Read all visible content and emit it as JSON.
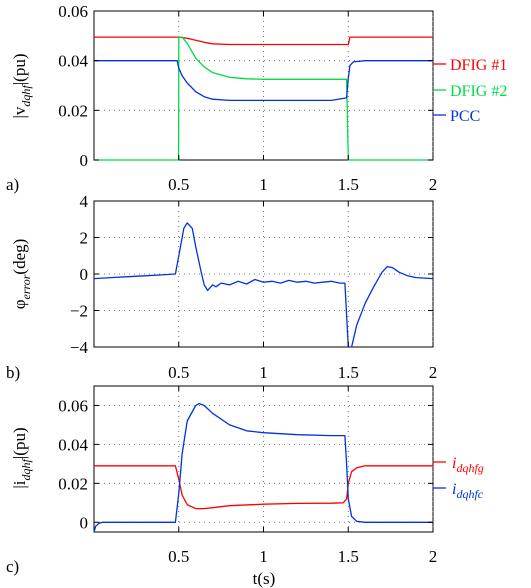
{
  "figure": {
    "xlabel": "t(s)"
  },
  "chart_data": [
    {
      "type": "line",
      "panel_label": "a)",
      "ylabel": {
        "pre": "|v",
        "sub": "dqhf",
        "post": "|(pu)"
      },
      "xlim": [
        0,
        2
      ],
      "ylim": [
        0,
        0.06
      ],
      "xticks": [
        0.5,
        1,
        1.5,
        2
      ],
      "xtick_labels": [
        "0.5",
        "1",
        "1.5",
        "2"
      ],
      "yticks": [
        0,
        0.02,
        0.04,
        0.06
      ],
      "ytick_labels": [
        "0",
        "0.02",
        "0.04",
        "0.06"
      ],
      "grid": true,
      "legend_position": "right",
      "series": [
        {
          "name": "DFIG #1",
          "color": "#ff0000",
          "x": [
            0,
            0.5,
            0.55,
            0.6,
            0.65,
            0.7,
            0.8,
            1.0,
            1.2,
            1.4,
            1.5,
            1.51,
            1.6,
            1.8,
            2.0
          ],
          "y": [
            0.0495,
            0.0495,
            0.049,
            0.0482,
            0.0474,
            0.0468,
            0.0465,
            0.0465,
            0.0465,
            0.0465,
            0.0465,
            0.0495,
            0.0495,
            0.0495,
            0.0495
          ]
        },
        {
          "name": "DFIG #2",
          "color": "#00dd44",
          "x": [
            0,
            0.499,
            0.5,
            0.52,
            0.55,
            0.6,
            0.65,
            0.7,
            0.8,
            0.9,
            1.0,
            1.2,
            1.4,
            1.49,
            1.5,
            2.0
          ],
          "y": [
            0,
            0,
            0.0495,
            0.0495,
            0.047,
            0.041,
            0.0375,
            0.0352,
            0.0333,
            0.0327,
            0.0325,
            0.0325,
            0.0325,
            0.0325,
            0,
            0
          ]
        },
        {
          "name": "PCC",
          "color": "#0033dd",
          "x": [
            0,
            0.49,
            0.5,
            0.52,
            0.55,
            0.6,
            0.65,
            0.7,
            0.8,
            0.9,
            1.0,
            1.2,
            1.4,
            1.49,
            1.5,
            1.51,
            1.53,
            1.6,
            1.8,
            2.0
          ],
          "y": [
            0.04,
            0.04,
            0.037,
            0.034,
            0.031,
            0.0275,
            0.0255,
            0.0245,
            0.024,
            0.024,
            0.024,
            0.024,
            0.024,
            0.025,
            0.033,
            0.038,
            0.0395,
            0.04,
            0.04,
            0.04
          ]
        }
      ]
    },
    {
      "type": "line",
      "panel_label": "b)",
      "ylabel": {
        "pre": "φ",
        "sub": "error",
        "post": "(deg)"
      },
      "xlim": [
        0,
        2
      ],
      "ylim": [
        -4,
        4
      ],
      "xticks": [
        0.5,
        1,
        1.5,
        2
      ],
      "xtick_labels": [
        "0.5",
        "1",
        "1.5",
        "2"
      ],
      "yticks": [
        -4,
        -2,
        0,
        2,
        4
      ],
      "ytick_labels": [
        "−4",
        "−2",
        "0",
        "2",
        "4"
      ],
      "grid": true,
      "series": [
        {
          "name": "",
          "color": "#0033dd",
          "x": [
            0,
            0.1,
            0.2,
            0.3,
            0.4,
            0.48,
            0.5,
            0.53,
            0.55,
            0.58,
            0.6,
            0.63,
            0.65,
            0.67,
            0.7,
            0.72,
            0.75,
            0.8,
            0.85,
            0.9,
            0.95,
            1.0,
            1.05,
            1.1,
            1.15,
            1.2,
            1.25,
            1.3,
            1.35,
            1.4,
            1.45,
            1.48,
            1.5,
            1.52,
            1.55,
            1.6,
            1.65,
            1.7,
            1.73,
            1.76,
            1.8,
            1.85,
            1.9,
            2.0
          ],
          "y": [
            -0.25,
            -0.2,
            -0.15,
            -0.1,
            -0.05,
            0.0,
            1.0,
            2.5,
            2.8,
            2.5,
            1.5,
            0.2,
            -0.6,
            -0.9,
            -0.6,
            -0.7,
            -0.5,
            -0.6,
            -0.4,
            -0.55,
            -0.3,
            -0.45,
            -0.4,
            -0.5,
            -0.35,
            -0.45,
            -0.4,
            -0.5,
            -0.45,
            -0.4,
            -0.5,
            -0.5,
            -4.0,
            -4.0,
            -2.8,
            -1.6,
            -0.7,
            0.1,
            0.4,
            0.35,
            0.1,
            -0.1,
            -0.2,
            -0.25
          ]
        }
      ]
    },
    {
      "type": "line",
      "panel_label": "c)",
      "ylabel": {
        "pre": "|i",
        "sub": "dqhf",
        "post": "|(pu)"
      },
      "xlim": [
        0,
        2
      ],
      "ylim": [
        -0.005,
        0.07
      ],
      "xticks": [
        0.5,
        1,
        1.5,
        2
      ],
      "xtick_labels": [
        "0.5",
        "1",
        "1.5",
        "2"
      ],
      "yticks": [
        0,
        0.02,
        0.04,
        0.06
      ],
      "ytick_labels": [
        "0",
        "0.02",
        "0.04",
        "0.06"
      ],
      "grid": true,
      "legend_position": "right",
      "series": [
        {
          "name": "i",
          "name_sub": "dqhfg",
          "color": "#ff0000",
          "x": [
            0,
            0.48,
            0.5,
            0.52,
            0.55,
            0.6,
            0.65,
            0.7,
            0.8,
            1.0,
            1.2,
            1.4,
            1.47,
            1.49,
            1.5,
            1.52,
            1.55,
            1.6,
            2.0
          ],
          "y": [
            0.029,
            0.029,
            0.022,
            0.014,
            0.009,
            0.007,
            0.007,
            0.0075,
            0.0085,
            0.0093,
            0.0097,
            0.0098,
            0.01,
            0.012,
            0.02,
            0.026,
            0.028,
            0.029,
            0.029
          ]
        },
        {
          "name": "i",
          "name_sub": "dqhfc",
          "color": "#0033dd",
          "x": [
            0,
            0.01,
            0.03,
            0.05,
            0.1,
            0.3,
            0.48,
            0.5,
            0.52,
            0.55,
            0.6,
            0.62,
            0.65,
            0.7,
            0.8,
            0.9,
            1.0,
            1.2,
            1.4,
            1.48,
            1.49,
            1.5,
            1.52,
            1.55,
            1.6,
            2.0
          ],
          "y": [
            -0.005,
            -0.002,
            -0.0005,
            0.0,
            0.0,
            0.0,
            0.0,
            0.015,
            0.035,
            0.052,
            0.06,
            0.061,
            0.06,
            0.056,
            0.05,
            0.047,
            0.046,
            0.045,
            0.0445,
            0.0445,
            0.03,
            0.012,
            0.003,
            0.0005,
            0.0,
            0.0
          ]
        }
      ]
    }
  ]
}
